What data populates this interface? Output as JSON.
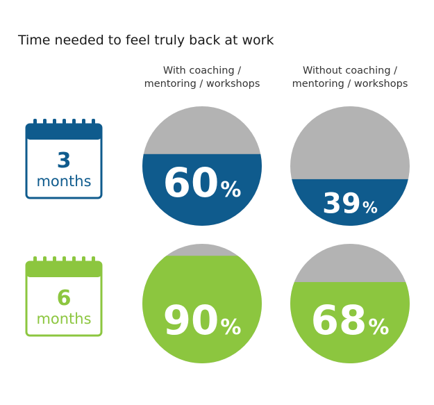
{
  "chart_data": {
    "type": "pie",
    "title": "Time needed to feel truly back at work",
    "columns": [
      {
        "header_line1": "With coaching /",
        "header_line2": "mentoring / workshops"
      },
      {
        "header_line1": "Without coaching /",
        "header_line2": "mentoring / workshops"
      }
    ],
    "rows": [
      {
        "number": "3",
        "unit": "months",
        "color": "#0f5b8d",
        "values": [
          60,
          39
        ]
      },
      {
        "number": "6",
        "unit": "months",
        "color": "#8cc63f",
        "values": [
          90,
          68
        ]
      }
    ],
    "value_suffix": "%",
    "remainder_color": "#b3b3b3"
  }
}
